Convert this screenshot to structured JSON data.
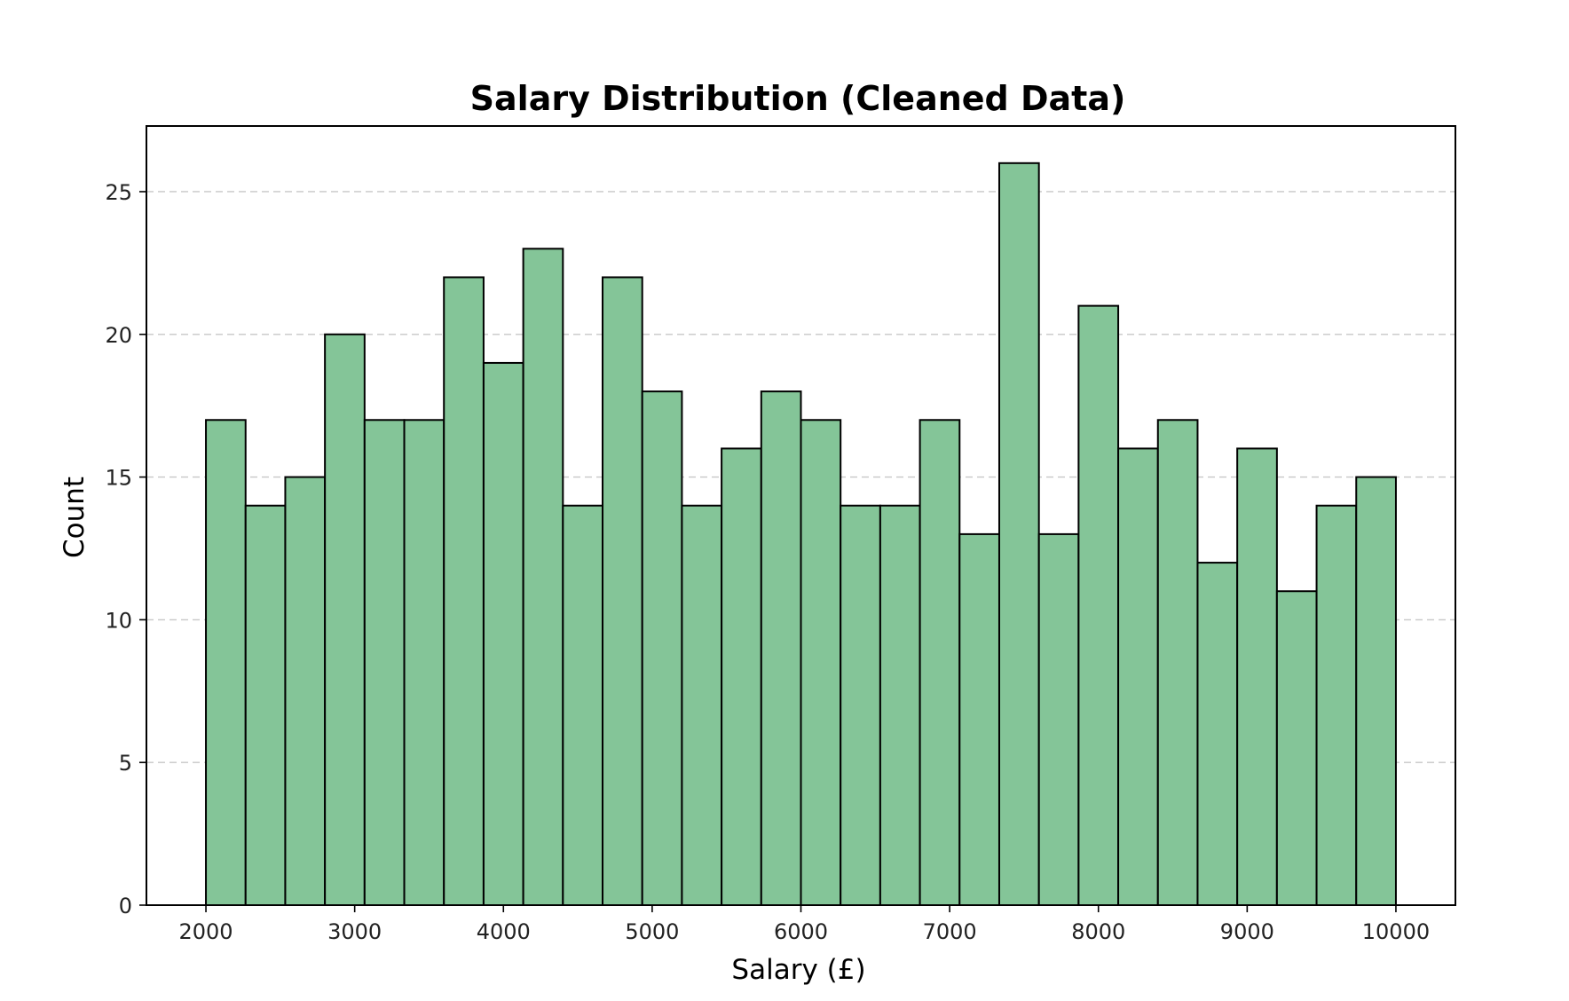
{
  "chart_data": {
    "type": "bar",
    "title": "Salary Distribution (Cleaned Data)",
    "xlabel": "Salary (£)",
    "ylabel": "Count",
    "bin_start": 2000,
    "bin_end": 10000,
    "bin_count": 30,
    "values": [
      17,
      14,
      15,
      20,
      17,
      17,
      22,
      19,
      23,
      14,
      22,
      18,
      14,
      16,
      18,
      17,
      14,
      14,
      17,
      13,
      26,
      13,
      21,
      16,
      17,
      12,
      16,
      11,
      14,
      15
    ],
    "xlim": [
      1600,
      10400
    ],
    "ylim": [
      0,
      27.3
    ],
    "x_ticks": [
      "2000",
      "3000",
      "4000",
      "5000",
      "6000",
      "7000",
      "8000",
      "9000",
      "10000"
    ],
    "y_ticks": [
      "0",
      "5",
      "10",
      "15",
      "20",
      "25"
    ],
    "grid": "y-dashed",
    "bar_color": "#84c598",
    "edge_color": "#000000"
  }
}
